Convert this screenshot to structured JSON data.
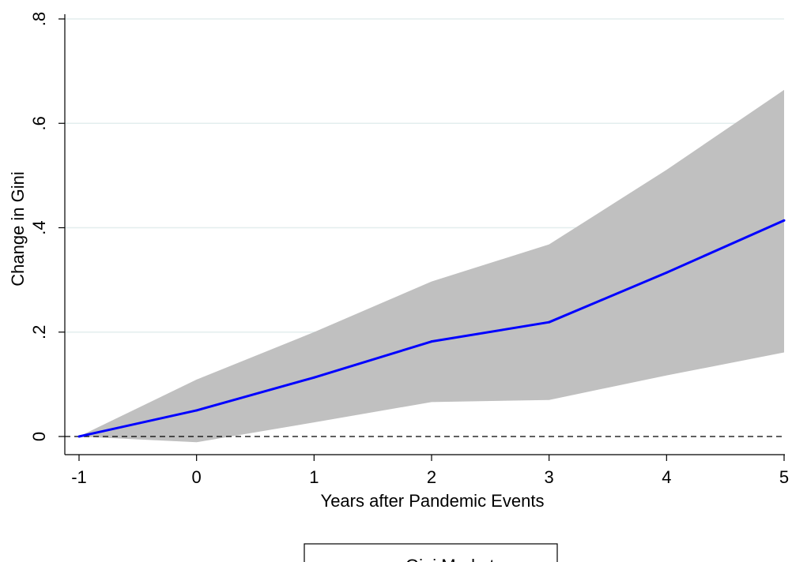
{
  "chart_data": {
    "type": "line",
    "title": "",
    "xlabel": "Years after Pandemic Events",
    "ylabel": "Change in Gini",
    "xlim": [
      -1,
      5
    ],
    "ylim": [
      0,
      0.8
    ],
    "x": [
      -1,
      0,
      1,
      2,
      3,
      4,
      5
    ],
    "x_tick_labels": [
      "-1",
      "0",
      "1",
      "2",
      "3",
      "4",
      "5"
    ],
    "y_ticks": [
      0,
      0.2,
      0.4,
      0.6,
      0.8
    ],
    "y_tick_labels": [
      "0",
      ".2",
      ".4",
      ".6",
      ".8"
    ],
    "grid": true,
    "reference_line": {
      "y": 0,
      "style": "dashed"
    },
    "series": [
      {
        "name": "Gini Market",
        "values": [
          0,
          0.05,
          0.113,
          0.182,
          0.219,
          0.314,
          0.414
        ],
        "ci_lower": [
          0,
          -0.011,
          0.027,
          0.066,
          0.07,
          0.117,
          0.161
        ],
        "ci_upper": [
          0,
          0.109,
          0.2,
          0.297,
          0.368,
          0.511,
          0.664
        ],
        "color": "#0000ff",
        "band_color": "#c0c0c0"
      }
    ],
    "legend": {
      "position": "bottom",
      "entries": [
        "Gini Market"
      ]
    }
  }
}
